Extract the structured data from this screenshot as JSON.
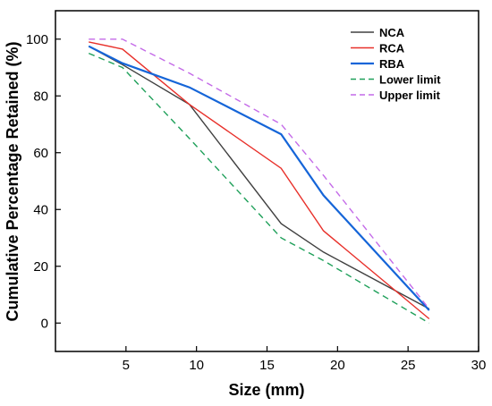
{
  "chart_data": {
    "type": "line",
    "title": "",
    "xlabel": "Size (mm)",
    "ylabel": "Cumulative Percentage Retained (%)",
    "xlim": [
      0,
      30
    ],
    "ylim": [
      -10,
      110
    ],
    "xticks": [
      5,
      10,
      15,
      20,
      25,
      30
    ],
    "yticks": [
      0,
      20,
      40,
      60,
      80,
      100
    ],
    "grid": false,
    "legend_position": "top-right",
    "series": [
      {
        "name": "NCA",
        "color": "#404040",
        "dash": "solid",
        "x": [
          2.36,
          4.75,
          9.5,
          16,
          19,
          26.5
        ],
        "y": [
          97.5,
          91,
          77,
          35,
          25,
          5
        ]
      },
      {
        "name": "RCA",
        "color": "#e8302a",
        "dash": "solid",
        "x": [
          2.36,
          4.75,
          9.5,
          16,
          19,
          26.5
        ],
        "y": [
          99,
          96.5,
          77,
          54.5,
          32.5,
          1.5
        ]
      },
      {
        "name": "RBA",
        "color": "#1565d8",
        "dash": "solid",
        "x": [
          2.36,
          4.75,
          9.5,
          16,
          19,
          26.5
        ],
        "y": [
          97.5,
          91.5,
          83,
          66.5,
          45,
          4.5
        ]
      },
      {
        "name": "Lower limit",
        "color": "#1fa05a",
        "dash": "dashed",
        "x": [
          2.36,
          4.75,
          9.5,
          16,
          19,
          26.5
        ],
        "y": [
          95,
          90,
          65,
          30,
          22,
          0
        ]
      },
      {
        "name": "Upper limit",
        "color": "#c46ae8",
        "dash": "dashed",
        "x": [
          2.36,
          4.75,
          9.5,
          16,
          19,
          26.5
        ],
        "y": [
          100,
          100,
          88,
          70,
          52,
          5
        ]
      }
    ]
  }
}
